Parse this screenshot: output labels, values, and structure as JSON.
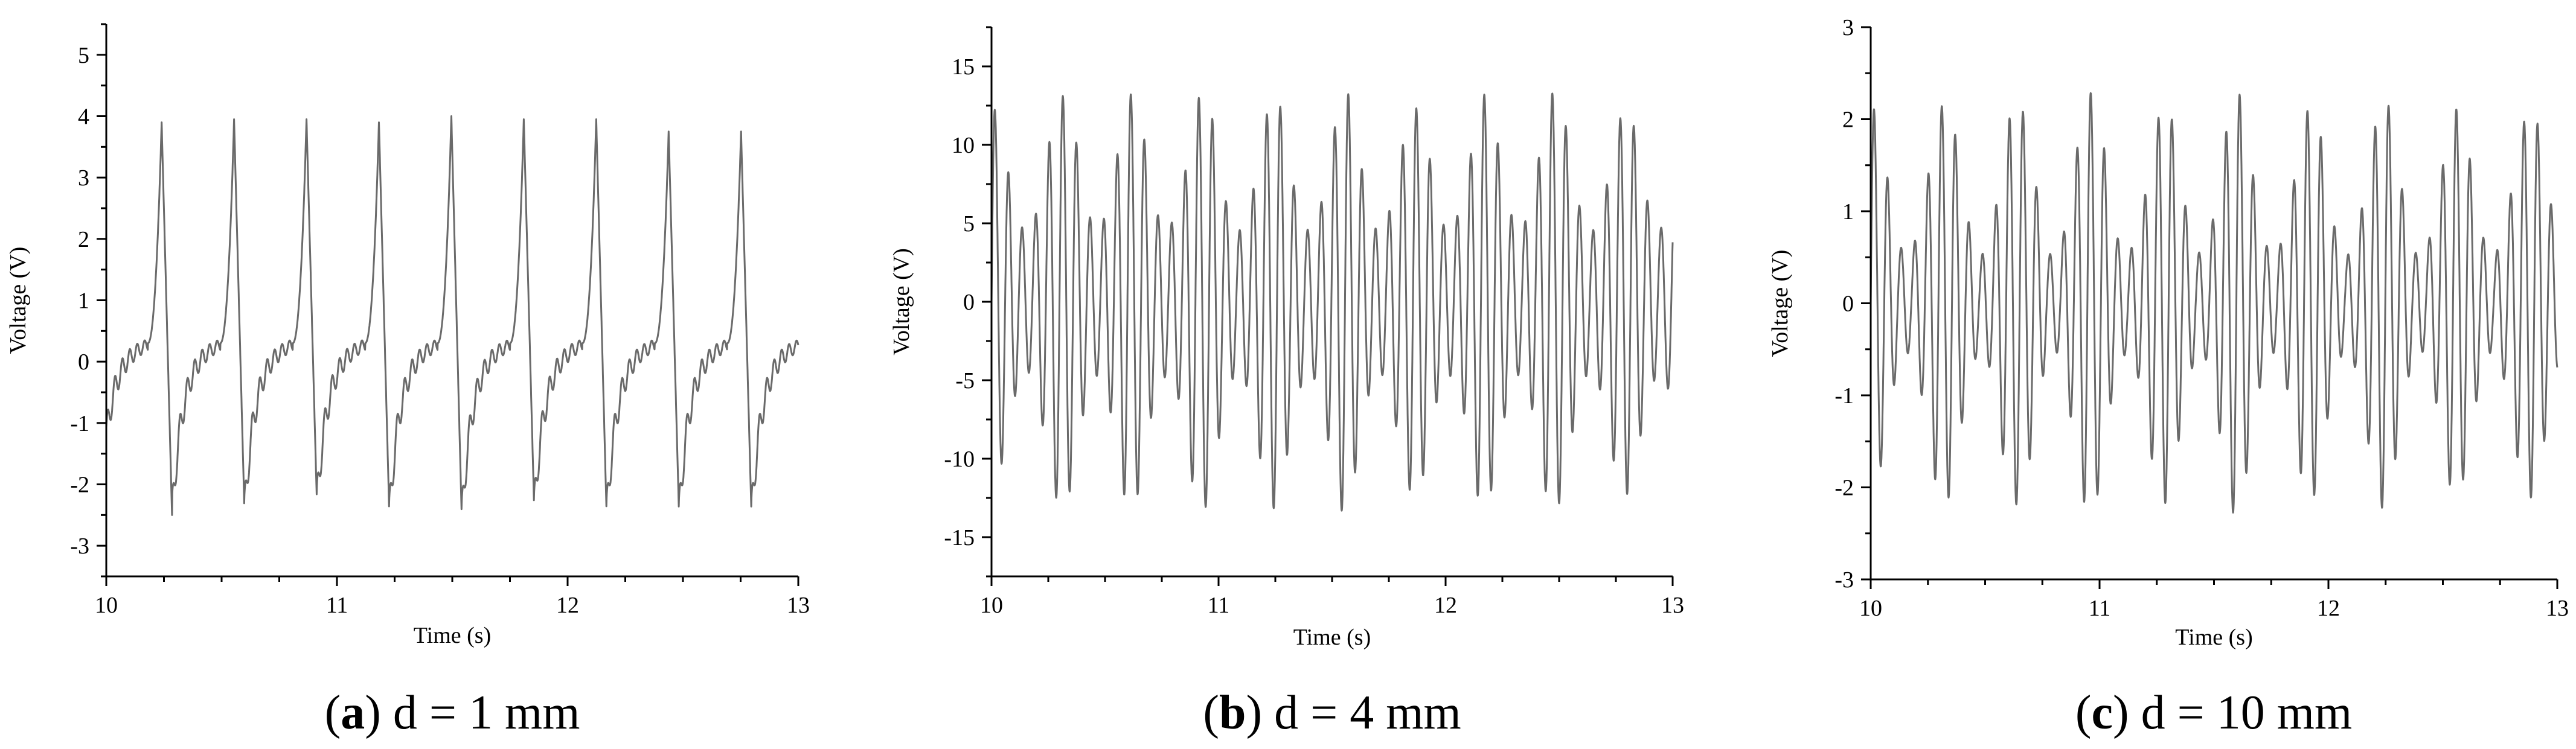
{
  "chart_data": [
    {
      "type": "line",
      "caption_letter": "a",
      "caption_paren_open": "(",
      "caption_rest": ") d = 1 mm",
      "xlabel": "Time (s)",
      "ylabel": "Voltage (V)",
      "xlim": [
        10,
        13
      ],
      "ylim": [
        -3.5,
        5.5
      ],
      "xticks": [
        "10",
        "11",
        "12",
        "13"
      ],
      "yticks": [
        "-3",
        "-2",
        "-1",
        "0",
        "1",
        "2",
        "3",
        "4",
        "5"
      ],
      "series": [
        {
          "color": "#6a6a6a",
          "waveform": {
            "x_start": 10.0,
            "x_end": 13.0,
            "period_s": 0.314,
            "first_peak_s": 10.24,
            "peak_values": [
              4.0,
              3.9,
              3.95,
              3.95,
              3.9,
              4.0,
              3.95,
              3.95,
              3.75
            ],
            "trough_values": [
              -2.35,
              -2.5,
              -2.45,
              -2.3,
              -2.5,
              -2.55,
              -2.4,
              -2.5
            ],
            "ripple_frequency_hz": 31.0,
            "ripple_amplitude": 0.3
          }
        }
      ]
    },
    {
      "type": "line",
      "caption_letter": "b",
      "caption_paren_open": "(",
      "caption_rest": ") d = 4 mm",
      "xlabel": "Time (s)",
      "ylabel": "Voltage (V)",
      "xlim": [
        10,
        13
      ],
      "ylim": [
        -17.5,
        17.5
      ],
      "xticks": [
        "10",
        "11",
        "12",
        "13"
      ],
      "yticks": [
        "-15",
        "-10",
        "-5",
        "0",
        "5",
        "10",
        "15"
      ],
      "series": [
        {
          "color": "#6a6a6a",
          "waveform": {
            "x_start": 10.0,
            "x_end": 13.0,
            "carrier_frequency_hz": 16.7,
            "beat_period_s": 0.31,
            "amplitude_min": 4.5,
            "amplitude_max": 14.5
          }
        }
      ]
    },
    {
      "type": "line",
      "caption_letter": "c",
      "caption_paren_open": "(",
      "caption_rest": ") d = 10 mm",
      "xlabel": "Time (s)",
      "ylabel": "Voltage (V)",
      "xlim": [
        10,
        13
      ],
      "ylim": [
        -3,
        3
      ],
      "xticks": [
        "10",
        "11",
        "12",
        "13"
      ],
      "yticks": [
        "-3",
        "-2",
        "-1",
        "0",
        "1",
        "2",
        "3"
      ],
      "series": [
        {
          "color": "#6a6a6a",
          "waveform": {
            "x_start": 10.0,
            "x_end": 13.0,
            "carrier_frequency_hz": 16.9,
            "beat_period_s": 0.32,
            "amplitude_min": 0.5,
            "amplitude_max": 2.5
          }
        }
      ]
    }
  ]
}
